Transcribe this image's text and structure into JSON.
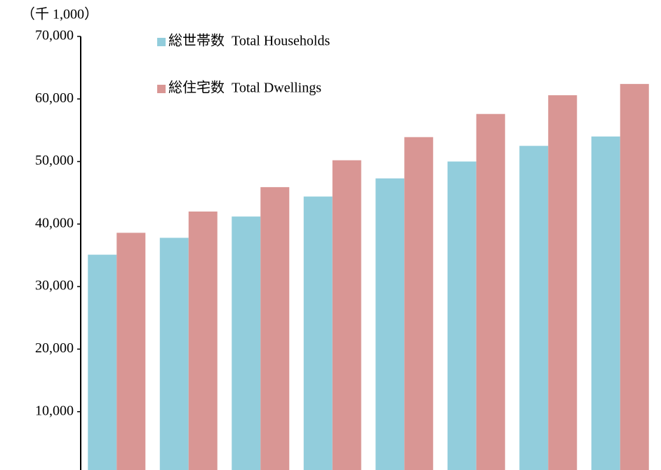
{
  "chart_data": {
    "type": "bar",
    "unit_label": "（千 1,000）",
    "categories": [
      null,
      null,
      null,
      null,
      null,
      null,
      null,
      null
    ],
    "series": [
      {
        "name": "総世帯数  Total Households",
        "color": "#92cddc",
        "values": [
          35100,
          37800,
          41200,
          44400,
          47300,
          50000,
          52500,
          54000
        ]
      },
      {
        "name": "総住宅数  Total Dwellings",
        "color": "#d99694",
        "values": [
          38600,
          42000,
          45900,
          50200,
          53900,
          57600,
          60600,
          62400
        ]
      }
    ],
    "ylim": [
      0,
      70000
    ],
    "yticks": [
      {
        "value": 10000,
        "label": "10,000"
      },
      {
        "value": 20000,
        "label": "20,000"
      },
      {
        "value": 30000,
        "label": "30,000"
      },
      {
        "value": 40000,
        "label": "40,000"
      },
      {
        "value": 50000,
        "label": "50,000"
      },
      {
        "value": 60000,
        "label": "60,000"
      },
      {
        "value": 70000,
        "label": "70,000"
      }
    ],
    "legend": "top-left"
  }
}
